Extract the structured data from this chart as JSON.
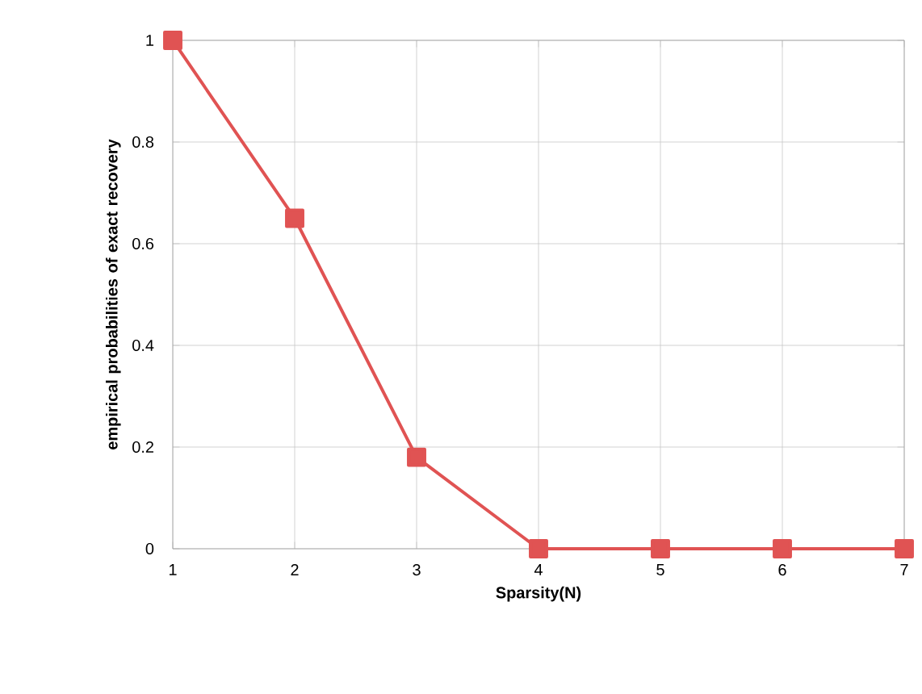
{
  "chart_data": {
    "type": "line",
    "xlabel": "Sparsity(N)",
    "ylabel": "empirical probabilities of exact recovery",
    "x": [
      1,
      2,
      3,
      4,
      5,
      6,
      7
    ],
    "series": [
      {
        "color": "#e05353",
        "values": [
          1,
          0.65,
          0.18,
          0,
          0,
          0,
          0
        ]
      }
    ],
    "xlim": [
      1,
      7
    ],
    "ylim": [
      0,
      1
    ],
    "xticks": [
      1,
      2,
      3,
      4,
      5,
      6,
      7
    ],
    "yticks": [
      0,
      0.2,
      0.4,
      0.6,
      0.8,
      1
    ],
    "grid": true,
    "marker": "square",
    "line_style": "solid"
  }
}
